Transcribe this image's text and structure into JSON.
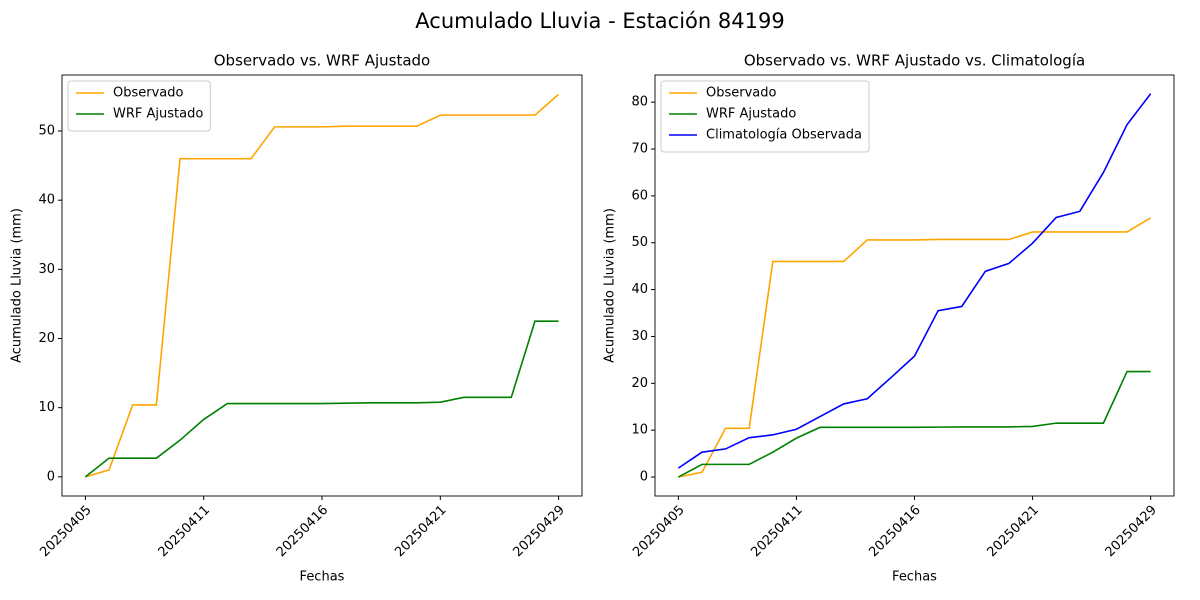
{
  "title": "Acumulado Lluvia - Estación 84199",
  "chart_data": [
    {
      "type": "line",
      "title": "Observado vs. WRF Ajustado",
      "x_label": "Fechas",
      "y_label": "Acumulado Lluvia (mm)",
      "categories": [
        "20250405",
        null,
        null,
        null,
        null,
        "20250411",
        null,
        null,
        null,
        null,
        "20250416",
        null,
        null,
        null,
        null,
        "20250421",
        null,
        null,
        null,
        null,
        "20250429"
      ],
      "series": [
        {
          "name": "Observado",
          "color": "orange",
          "values": [
            0,
            1,
            10.4,
            10.4,
            46,
            46,
            46,
            46,
            50.6,
            50.6,
            50.6,
            50.7,
            50.7,
            50.7,
            50.7,
            52.3,
            52.3,
            52.3,
            52.3,
            52.3,
            55.3
          ]
        },
        {
          "name": "WRF Ajustado",
          "color": "green",
          "values": [
            0,
            2.7,
            2.7,
            2.7,
            5.3,
            8.3,
            10.6,
            10.6,
            10.6,
            10.6,
            10.6,
            10.65,
            10.7,
            10.7,
            10.7,
            10.8,
            11.5,
            11.5,
            11.5,
            22.5,
            22.5
          ]
        }
      ],
      "ylim": [
        -2.77,
        58.1
      ],
      "yticks": [
        0,
        10,
        20,
        30,
        40,
        50
      ],
      "legend": "upper left"
    },
    {
      "type": "line",
      "title": "Observado vs. WRF Ajustado vs. Climatología",
      "x_label": "Fechas",
      "y_label": "Acumulado Lluvia (mm)",
      "categories": [
        "20250405",
        null,
        null,
        null,
        null,
        "20250411",
        null,
        null,
        null,
        null,
        "20250416",
        null,
        null,
        null,
        null,
        "20250421",
        null,
        null,
        null,
        null,
        "20250429"
      ],
      "series": [
        {
          "name": "Observado",
          "color": "orange",
          "values": [
            0,
            1,
            10.4,
            10.4,
            46,
            46,
            46,
            46,
            50.6,
            50.6,
            50.6,
            50.7,
            50.7,
            50.7,
            50.7,
            52.3,
            52.3,
            52.3,
            52.3,
            52.3,
            55.3
          ]
        },
        {
          "name": "WRF Ajustado",
          "color": "green",
          "values": [
            0,
            2.7,
            2.7,
            2.7,
            5.3,
            8.3,
            10.6,
            10.6,
            10.6,
            10.6,
            10.6,
            10.65,
            10.7,
            10.7,
            10.7,
            10.8,
            11.5,
            11.5,
            11.5,
            22.5,
            22.5
          ]
        },
        {
          "name": "Climatología Observada",
          "color": "blue",
          "values": [
            1.9,
            5.3,
            6,
            8.4,
            9,
            10.2,
            12.9,
            15.6,
            16.7,
            21.2,
            25.8,
            35.5,
            36.4,
            43.9,
            45.6,
            49.9,
            55.4,
            56.7,
            65,
            75.2,
            81.8
          ]
        }
      ],
      "ylim": [
        -4.05,
        85.8
      ],
      "yticks": [
        0,
        10,
        20,
        30,
        40,
        50,
        60,
        70,
        80
      ],
      "legend": "upper left"
    }
  ]
}
